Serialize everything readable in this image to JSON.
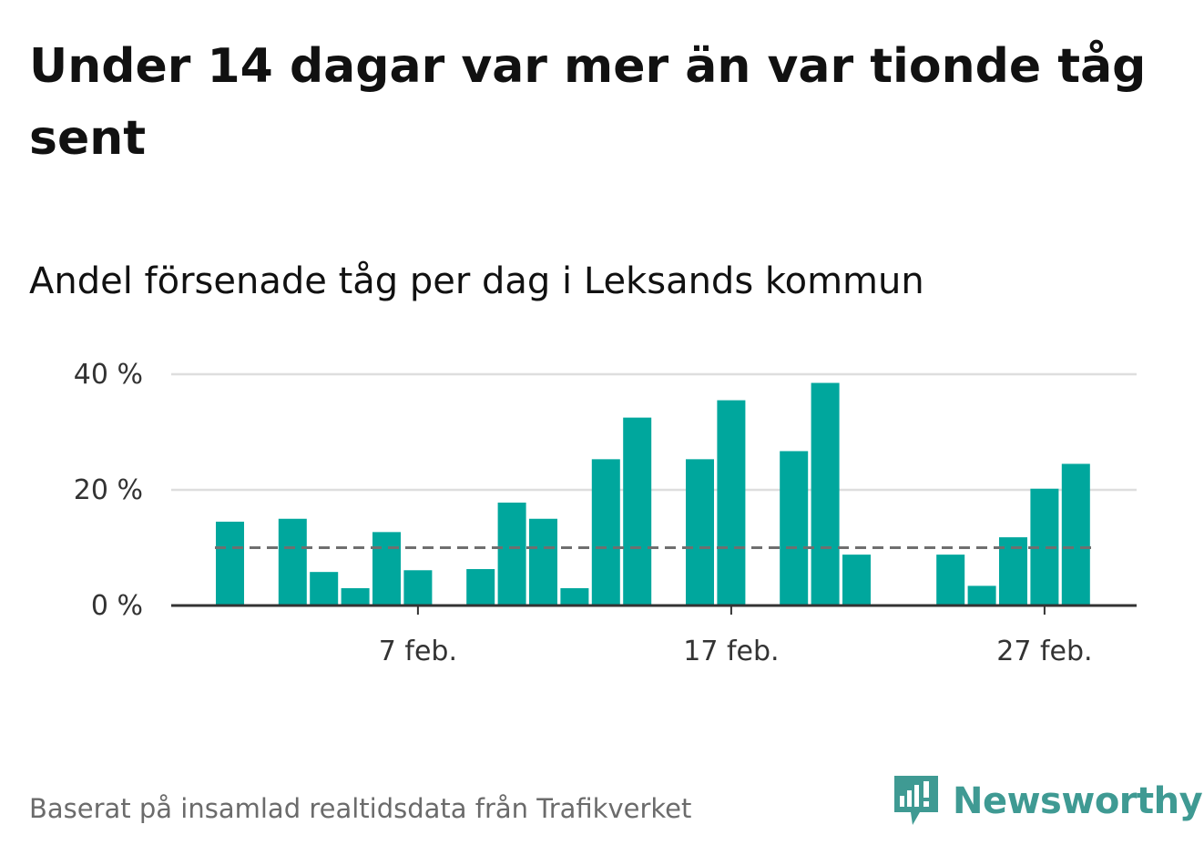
{
  "title": "Under 14 dagar var mer än var tionde tåg sent",
  "subtitle": "Andel försenade tåg per dag i Leksands kommun",
  "footer": "Baserat på insamlad realtidsdata från Trafikverket",
  "brand": {
    "name": "Newsworthy",
    "color": "#3f9a93",
    "icon": "newsworthy-logo-icon"
  },
  "chart_data": {
    "type": "bar",
    "title": "Andel försenade tåg per dag i Leksands kommun",
    "x_unit": "day of February",
    "days": [
      1,
      2,
      3,
      4,
      5,
      6,
      7,
      8,
      9,
      10,
      11,
      12,
      13,
      14,
      15,
      16,
      17,
      18,
      19,
      20,
      21,
      22,
      23,
      24,
      25,
      26,
      27,
      28
    ],
    "values": [
      14.5,
      null,
      15,
      5.8,
      3.0,
      12.7,
      6.1,
      null,
      6.3,
      17.8,
      15,
      3.0,
      25.3,
      32.5,
      null,
      25.3,
      35.5,
      null,
      26.7,
      38.5,
      8.8,
      null,
      null,
      8.8,
      3.4,
      11.8,
      20.2,
      24.5
    ],
    "reference_line": {
      "value": 10,
      "style": "dashed",
      "color": "#6f6f6f"
    },
    "ylim": [
      0,
      40
    ],
    "yticks": [
      0,
      20,
      40
    ],
    "ytick_labels": [
      "0 %",
      "20 %",
      "40 %"
    ],
    "xticks": [
      7,
      17,
      27
    ],
    "xtick_labels": [
      "7 feb.",
      "17 feb.",
      "27 feb."
    ],
    "bar_color": "#00a79d",
    "grid": true,
    "xlabel": "",
    "ylabel": ""
  }
}
